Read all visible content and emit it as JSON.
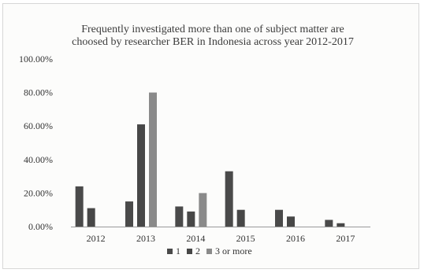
{
  "chart_data": {
    "type": "bar",
    "title_lines": [
      "Frequently investigated more than one of subject matter are",
      "choosed by researcher BER in Indonesia across year 2012-2017"
    ],
    "categories": [
      "2012",
      "2013",
      "2014",
      "2015",
      "2016",
      "2017"
    ],
    "series": [
      {
        "name": "1",
        "values": [
          24,
          15,
          12,
          33,
          10,
          4
        ]
      },
      {
        "name": "2",
        "values": [
          11,
          61,
          9,
          10,
          6,
          2
        ]
      },
      {
        "name": "3 or more",
        "values": [
          0,
          80,
          20,
          0,
          0,
          0
        ]
      }
    ],
    "colors": [
      "#4a4a4a",
      "#474747",
      "#8a8a8a"
    ],
    "ylim": [
      0,
      100
    ],
    "yticks": [
      "0.00%",
      "20.00%",
      "40.00%",
      "60.00%",
      "80.00%",
      "100.00%"
    ],
    "legend_position": "bottom",
    "grid": false
  }
}
